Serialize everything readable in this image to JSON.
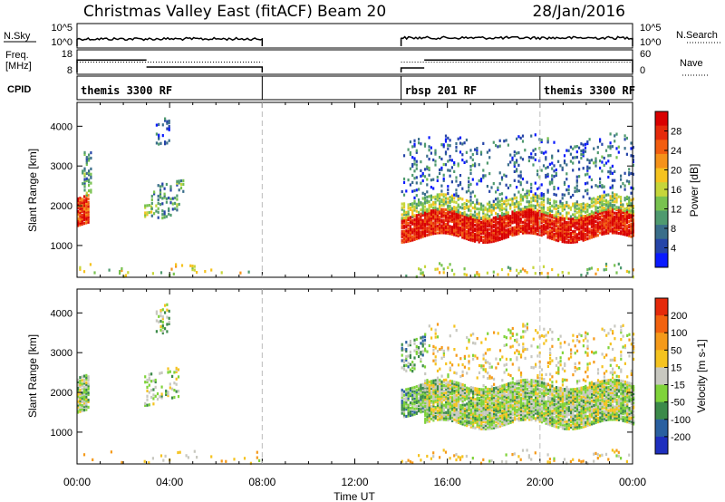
{
  "header": {
    "title": "Christmas Valley East (fitACF)",
    "beam": "Beam 20",
    "date": "28/Jan/2016"
  },
  "nsky_panel": {
    "left_label": "N.Sky",
    "left_ticks": [
      "10^5",
      "10^0"
    ],
    "right_ticks": [
      "10^5",
      "10^0"
    ],
    "right_label": "N.Search",
    "segments": [
      {
        "start": 0.0,
        "end": 8.0,
        "level": 0.35
      },
      {
        "start": 14.0,
        "end": 24.0,
        "level": 0.4
      }
    ]
  },
  "freq_panel": {
    "left_label_1": "Freq.",
    "left_label_2": "[MHz]",
    "left_ticks": [
      "18",
      "8"
    ],
    "right_ticks": [
      "60",
      "0"
    ],
    "right_label": "Nave",
    "freq_segments": [
      {
        "start": 0.0,
        "end": 3.0,
        "mhz": 14.0
      },
      {
        "start": 3.0,
        "end": 8.0,
        "mhz": 10.6
      },
      {
        "start": 14.0,
        "end": 15.0,
        "mhz": 10.2
      },
      {
        "start": 15.0,
        "end": 24.0,
        "mhz": 14.0
      }
    ],
    "nave_segments": [
      {
        "start": 0.0,
        "end": 8.0,
        "value": 30
      },
      {
        "start": 14.0,
        "end": 24.0,
        "value": 30
      }
    ]
  },
  "cpid": {
    "label": "CPID",
    "entries": [
      {
        "start": 0.0,
        "end": 8.0,
        "text": "themis 3300 RF"
      },
      {
        "start": 14.0,
        "end": 20.0,
        "text": "rbsp 201 RF"
      },
      {
        "start": 20.0,
        "end": 24.0,
        "text": "themis 3300 RF"
      }
    ]
  },
  "chart_data": [
    {
      "type": "heatmap",
      "panel": "power",
      "ylabel": "Slant Range [km]",
      "yticks": [
        1000,
        2000,
        3000,
        4000
      ],
      "ylim": [
        200,
        4600
      ],
      "xlim": [
        0,
        24
      ],
      "colorbar_label": "Power [dB]",
      "colorbar_ticks": [
        "28",
        "24",
        "20",
        "16",
        "12",
        "8",
        "4"
      ],
      "colorscale": [
        "#0a1aff",
        "#2645a8",
        "#3a6e8a",
        "#4f9a6f",
        "#78c24f",
        "#c6d63a",
        "#f5c320",
        "#f5921a",
        "#f25d10",
        "#e52a0b",
        "#d90000"
      ],
      "layers": [
        {
          "t0": 0.0,
          "t1": 0.5,
          "r0": 1500,
          "r1": 2200,
          "level": 0.85,
          "prob": 0.9
        },
        {
          "t0": 0.2,
          "t1": 0.6,
          "r0": 2200,
          "r1": 3300,
          "level": 0.3,
          "prob": 0.35
        },
        {
          "t0": 2.9,
          "t1": 3.2,
          "r0": 1800,
          "r1": 2200,
          "level": 0.45,
          "prob": 0.5
        },
        {
          "t0": 3.2,
          "t1": 4.6,
          "r0": 1700,
          "r1": 2600,
          "level": 0.3,
          "prob": 0.22
        },
        {
          "t0": 3.4,
          "t1": 4.0,
          "r0": 3500,
          "r1": 4200,
          "level": 0.2,
          "prob": 0.2
        },
        {
          "t0": 14.0,
          "t1": 24.0,
          "r0": 1200,
          "r1": 1800,
          "level": 0.92,
          "prob": 0.9
        },
        {
          "t0": 14.0,
          "t1": 24.0,
          "r0": 1800,
          "r1": 2200,
          "level": 0.45,
          "prob": 0.55
        },
        {
          "t0": 14.0,
          "t1": 24.0,
          "r0": 2200,
          "r1": 3700,
          "level": 0.2,
          "prob": 0.14
        },
        {
          "t0": 0.0,
          "t1": 8.0,
          "r0": 200,
          "r1": 450,
          "level": 0.5,
          "prob": 0.06
        },
        {
          "t0": 14.0,
          "t1": 24.0,
          "r0": 200,
          "r1": 450,
          "level": 0.5,
          "prob": 0.12
        }
      ]
    },
    {
      "type": "heatmap",
      "panel": "velocity",
      "xlabel": "Time UT",
      "ylabel": "Slant Range [km]",
      "yticks": [
        1000,
        2000,
        3000,
        4000
      ],
      "ylim": [
        200,
        4600
      ],
      "xlim": [
        0,
        24
      ],
      "xticks": [
        "00:00",
        "04:00",
        "08:00",
        "12:00",
        "16:00",
        "20:00",
        "00:00"
      ],
      "colorbar_label": "Velocity [m s-1]",
      "colorbar_ticks": [
        "200",
        "100",
        "50",
        "15",
        "-15",
        "-50",
        "-100",
        "-200"
      ],
      "colorscale": [
        "#1e2fbe",
        "#2a60a0",
        "#3c8a4a",
        "#7fd33a",
        "#c8c8c0",
        "#f5c320",
        "#f59a1a",
        "#f2620f",
        "#e52a0b"
      ],
      "layers": [
        {
          "t0": 0.0,
          "t1": 0.5,
          "r0": 1500,
          "r1": 2400,
          "level": 0.45,
          "prob": 0.8
        },
        {
          "t0": 2.9,
          "t1": 4.6,
          "r0": 1700,
          "r1": 2600,
          "level": 0.45,
          "prob": 0.2
        },
        {
          "t0": 3.4,
          "t1": 4.0,
          "r0": 3500,
          "r1": 4200,
          "level": 0.45,
          "prob": 0.2
        },
        {
          "t0": 14.0,
          "t1": 15.2,
          "r0": 1500,
          "r1": 2200,
          "level": 0.35,
          "prob": 0.85
        },
        {
          "t0": 14.0,
          "t1": 15.0,
          "r0": 2600,
          "r1": 3400,
          "level": 0.35,
          "prob": 0.35
        },
        {
          "t0": 15.0,
          "t1": 24.0,
          "r0": 1200,
          "r1": 2200,
          "level": 0.45,
          "prob": 0.9
        },
        {
          "t0": 15.0,
          "t1": 24.0,
          "r0": 2200,
          "r1": 3600,
          "level": 0.55,
          "prob": 0.12
        },
        {
          "t0": 0.0,
          "t1": 8.0,
          "r0": 200,
          "r1": 450,
          "level": 0.6,
          "prob": 0.05
        },
        {
          "t0": 14.0,
          "t1": 24.0,
          "r0": 200,
          "r1": 450,
          "level": 0.6,
          "prob": 0.12
        }
      ]
    }
  ]
}
